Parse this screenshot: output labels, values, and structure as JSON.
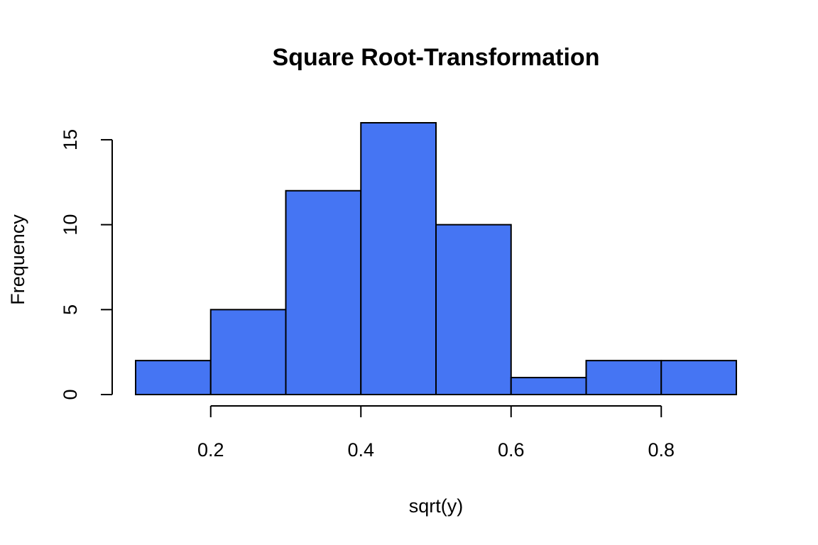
{
  "chart_data": {
    "type": "bar",
    "title": "Square Root-Transformation",
    "xlabel": "sqrt(y)",
    "ylabel": "Frequency",
    "bins": [
      {
        "start": 0.1,
        "end": 0.2,
        "count": 2
      },
      {
        "start": 0.2,
        "end": 0.3,
        "count": 5
      },
      {
        "start": 0.3,
        "end": 0.4,
        "count": 12
      },
      {
        "start": 0.4,
        "end": 0.5,
        "count": 16
      },
      {
        "start": 0.5,
        "end": 0.6,
        "count": 10
      },
      {
        "start": 0.6,
        "end": 0.7,
        "count": 1
      },
      {
        "start": 0.7,
        "end": 0.8,
        "count": 2
      },
      {
        "start": 0.8,
        "end": 0.9,
        "count": 2
      }
    ],
    "xticks": [
      {
        "value": 0.2,
        "label": "0.2"
      },
      {
        "value": 0.4,
        "label": "0.4"
      },
      {
        "value": 0.6,
        "label": "0.6"
      },
      {
        "value": 0.8,
        "label": "0.8"
      }
    ],
    "yticks": [
      {
        "value": 0,
        "label": "0"
      },
      {
        "value": 5,
        "label": "5"
      },
      {
        "value": 10,
        "label": "10"
      },
      {
        "value": 15,
        "label": "15"
      }
    ],
    "xlim": [
      0.1,
      0.9
    ],
    "ylim": [
      0,
      16
    ],
    "grid": false,
    "bar_color": "#4575F3",
    "edge_color": "#000000"
  }
}
